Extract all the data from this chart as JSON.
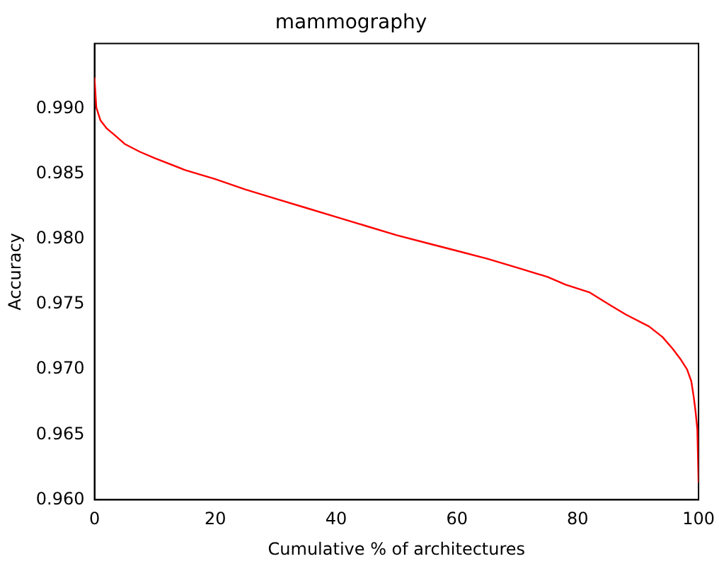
{
  "chart_data": {
    "type": "line",
    "title": "mammography",
    "xlabel": "Cumulative % of architectures",
    "ylabel": "Accuracy",
    "x": [
      0,
      0.3,
      1,
      2,
      3.3,
      5,
      7.5,
      10,
      15,
      20,
      25,
      30,
      35,
      40,
      45,
      50,
      55,
      60,
      65,
      70,
      75,
      78,
      82,
      85.5,
      88,
      91.8,
      94,
      95.7,
      97,
      98.1,
      98.8,
      99.2,
      99.5,
      99.8,
      100
    ],
    "series": [
      {
        "color": "#ff0000",
        "values": [
          0.9924,
          0.9901,
          0.9891,
          0.9885,
          0.988,
          0.9873,
          0.9867,
          0.9862,
          0.9853,
          0.9846,
          0.9838,
          0.9831,
          0.9824,
          0.9817,
          0.981,
          0.9803,
          0.9797,
          0.9791,
          0.9785,
          0.9778,
          0.9771,
          0.9765,
          0.9759,
          0.9749,
          0.9742,
          0.9733,
          0.9725,
          0.9716,
          0.9708,
          0.97,
          0.9691,
          0.9679,
          0.9668,
          0.9654,
          0.9613
        ]
      }
    ],
    "xlim": [
      0,
      100
    ],
    "xticks": [
      0,
      20,
      40,
      60,
      80,
      100
    ],
    "ylim": [
      0.96,
      0.995
    ],
    "yticks": [
      {
        "value": 0.96,
        "label": "0.960"
      },
      {
        "value": 0.965,
        "label": "0.965"
      },
      {
        "value": 0.97,
        "label": "0.970"
      },
      {
        "value": 0.975,
        "label": "0.975"
      },
      {
        "value": 0.98,
        "label": "0.980"
      },
      {
        "value": 0.985,
        "label": "0.985"
      },
      {
        "value": 0.99,
        "label": "0.990"
      }
    ],
    "grid": false,
    "legend": false,
    "marker": "none",
    "line_style": "solid"
  }
}
